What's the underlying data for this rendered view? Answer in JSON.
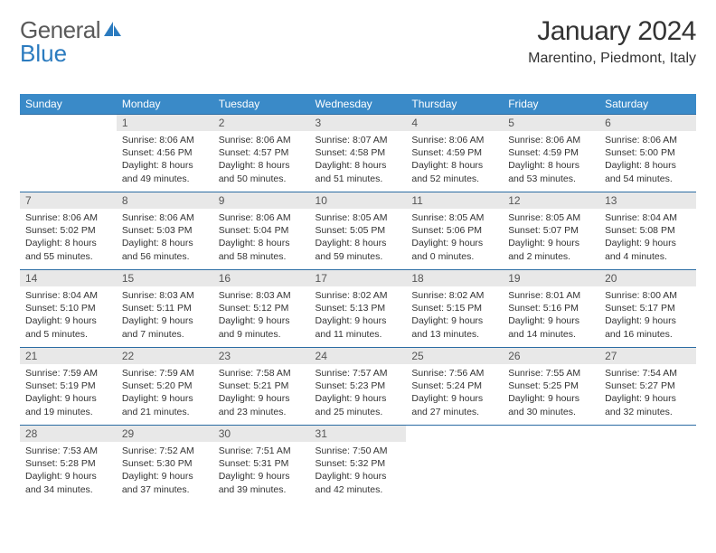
{
  "brand": {
    "word1": "General",
    "word2": "Blue"
  },
  "title": "January 2024",
  "subtitle": "Marentino, Piedmont, Italy",
  "weekdays": [
    "Sunday",
    "Monday",
    "Tuesday",
    "Wednesday",
    "Thursday",
    "Friday",
    "Saturday"
  ],
  "colors": {
    "header_bg": "#3a8ac8",
    "header_rule": "#2b6ca3",
    "daynum_bg": "#e8e8e8",
    "text": "#333333",
    "brand_gray": "#5a5a5a",
    "brand_blue": "#2b7bbf"
  },
  "start_offset": 1,
  "days": [
    {
      "n": "1",
      "sunrise": "8:06 AM",
      "sunset": "4:56 PM",
      "daylight": "8 hours and 49 minutes."
    },
    {
      "n": "2",
      "sunrise": "8:06 AM",
      "sunset": "4:57 PM",
      "daylight": "8 hours and 50 minutes."
    },
    {
      "n": "3",
      "sunrise": "8:07 AM",
      "sunset": "4:58 PM",
      "daylight": "8 hours and 51 minutes."
    },
    {
      "n": "4",
      "sunrise": "8:06 AM",
      "sunset": "4:59 PM",
      "daylight": "8 hours and 52 minutes."
    },
    {
      "n": "5",
      "sunrise": "8:06 AM",
      "sunset": "4:59 PM",
      "daylight": "8 hours and 53 minutes."
    },
    {
      "n": "6",
      "sunrise": "8:06 AM",
      "sunset": "5:00 PM",
      "daylight": "8 hours and 54 minutes."
    },
    {
      "n": "7",
      "sunrise": "8:06 AM",
      "sunset": "5:02 PM",
      "daylight": "8 hours and 55 minutes."
    },
    {
      "n": "8",
      "sunrise": "8:06 AM",
      "sunset": "5:03 PM",
      "daylight": "8 hours and 56 minutes."
    },
    {
      "n": "9",
      "sunrise": "8:06 AM",
      "sunset": "5:04 PM",
      "daylight": "8 hours and 58 minutes."
    },
    {
      "n": "10",
      "sunrise": "8:05 AM",
      "sunset": "5:05 PM",
      "daylight": "8 hours and 59 minutes."
    },
    {
      "n": "11",
      "sunrise": "8:05 AM",
      "sunset": "5:06 PM",
      "daylight": "9 hours and 0 minutes."
    },
    {
      "n": "12",
      "sunrise": "8:05 AM",
      "sunset": "5:07 PM",
      "daylight": "9 hours and 2 minutes."
    },
    {
      "n": "13",
      "sunrise": "8:04 AM",
      "sunset": "5:08 PM",
      "daylight": "9 hours and 4 minutes."
    },
    {
      "n": "14",
      "sunrise": "8:04 AM",
      "sunset": "5:10 PM",
      "daylight": "9 hours and 5 minutes."
    },
    {
      "n": "15",
      "sunrise": "8:03 AM",
      "sunset": "5:11 PM",
      "daylight": "9 hours and 7 minutes."
    },
    {
      "n": "16",
      "sunrise": "8:03 AM",
      "sunset": "5:12 PM",
      "daylight": "9 hours and 9 minutes."
    },
    {
      "n": "17",
      "sunrise": "8:02 AM",
      "sunset": "5:13 PM",
      "daylight": "9 hours and 11 minutes."
    },
    {
      "n": "18",
      "sunrise": "8:02 AM",
      "sunset": "5:15 PM",
      "daylight": "9 hours and 13 minutes."
    },
    {
      "n": "19",
      "sunrise": "8:01 AM",
      "sunset": "5:16 PM",
      "daylight": "9 hours and 14 minutes."
    },
    {
      "n": "20",
      "sunrise": "8:00 AM",
      "sunset": "5:17 PM",
      "daylight": "9 hours and 16 minutes."
    },
    {
      "n": "21",
      "sunrise": "7:59 AM",
      "sunset": "5:19 PM",
      "daylight": "9 hours and 19 minutes."
    },
    {
      "n": "22",
      "sunrise": "7:59 AM",
      "sunset": "5:20 PM",
      "daylight": "9 hours and 21 minutes."
    },
    {
      "n": "23",
      "sunrise": "7:58 AM",
      "sunset": "5:21 PM",
      "daylight": "9 hours and 23 minutes."
    },
    {
      "n": "24",
      "sunrise": "7:57 AM",
      "sunset": "5:23 PM",
      "daylight": "9 hours and 25 minutes."
    },
    {
      "n": "25",
      "sunrise": "7:56 AM",
      "sunset": "5:24 PM",
      "daylight": "9 hours and 27 minutes."
    },
    {
      "n": "26",
      "sunrise": "7:55 AM",
      "sunset": "5:25 PM",
      "daylight": "9 hours and 30 minutes."
    },
    {
      "n": "27",
      "sunrise": "7:54 AM",
      "sunset": "5:27 PM",
      "daylight": "9 hours and 32 minutes."
    },
    {
      "n": "28",
      "sunrise": "7:53 AM",
      "sunset": "5:28 PM",
      "daylight": "9 hours and 34 minutes."
    },
    {
      "n": "29",
      "sunrise": "7:52 AM",
      "sunset": "5:30 PM",
      "daylight": "9 hours and 37 minutes."
    },
    {
      "n": "30",
      "sunrise": "7:51 AM",
      "sunset": "5:31 PM",
      "daylight": "9 hours and 39 minutes."
    },
    {
      "n": "31",
      "sunrise": "7:50 AM",
      "sunset": "5:32 PM",
      "daylight": "9 hours and 42 minutes."
    }
  ],
  "labels": {
    "sunrise": "Sunrise:",
    "sunset": "Sunset:",
    "daylight": "Daylight:"
  }
}
